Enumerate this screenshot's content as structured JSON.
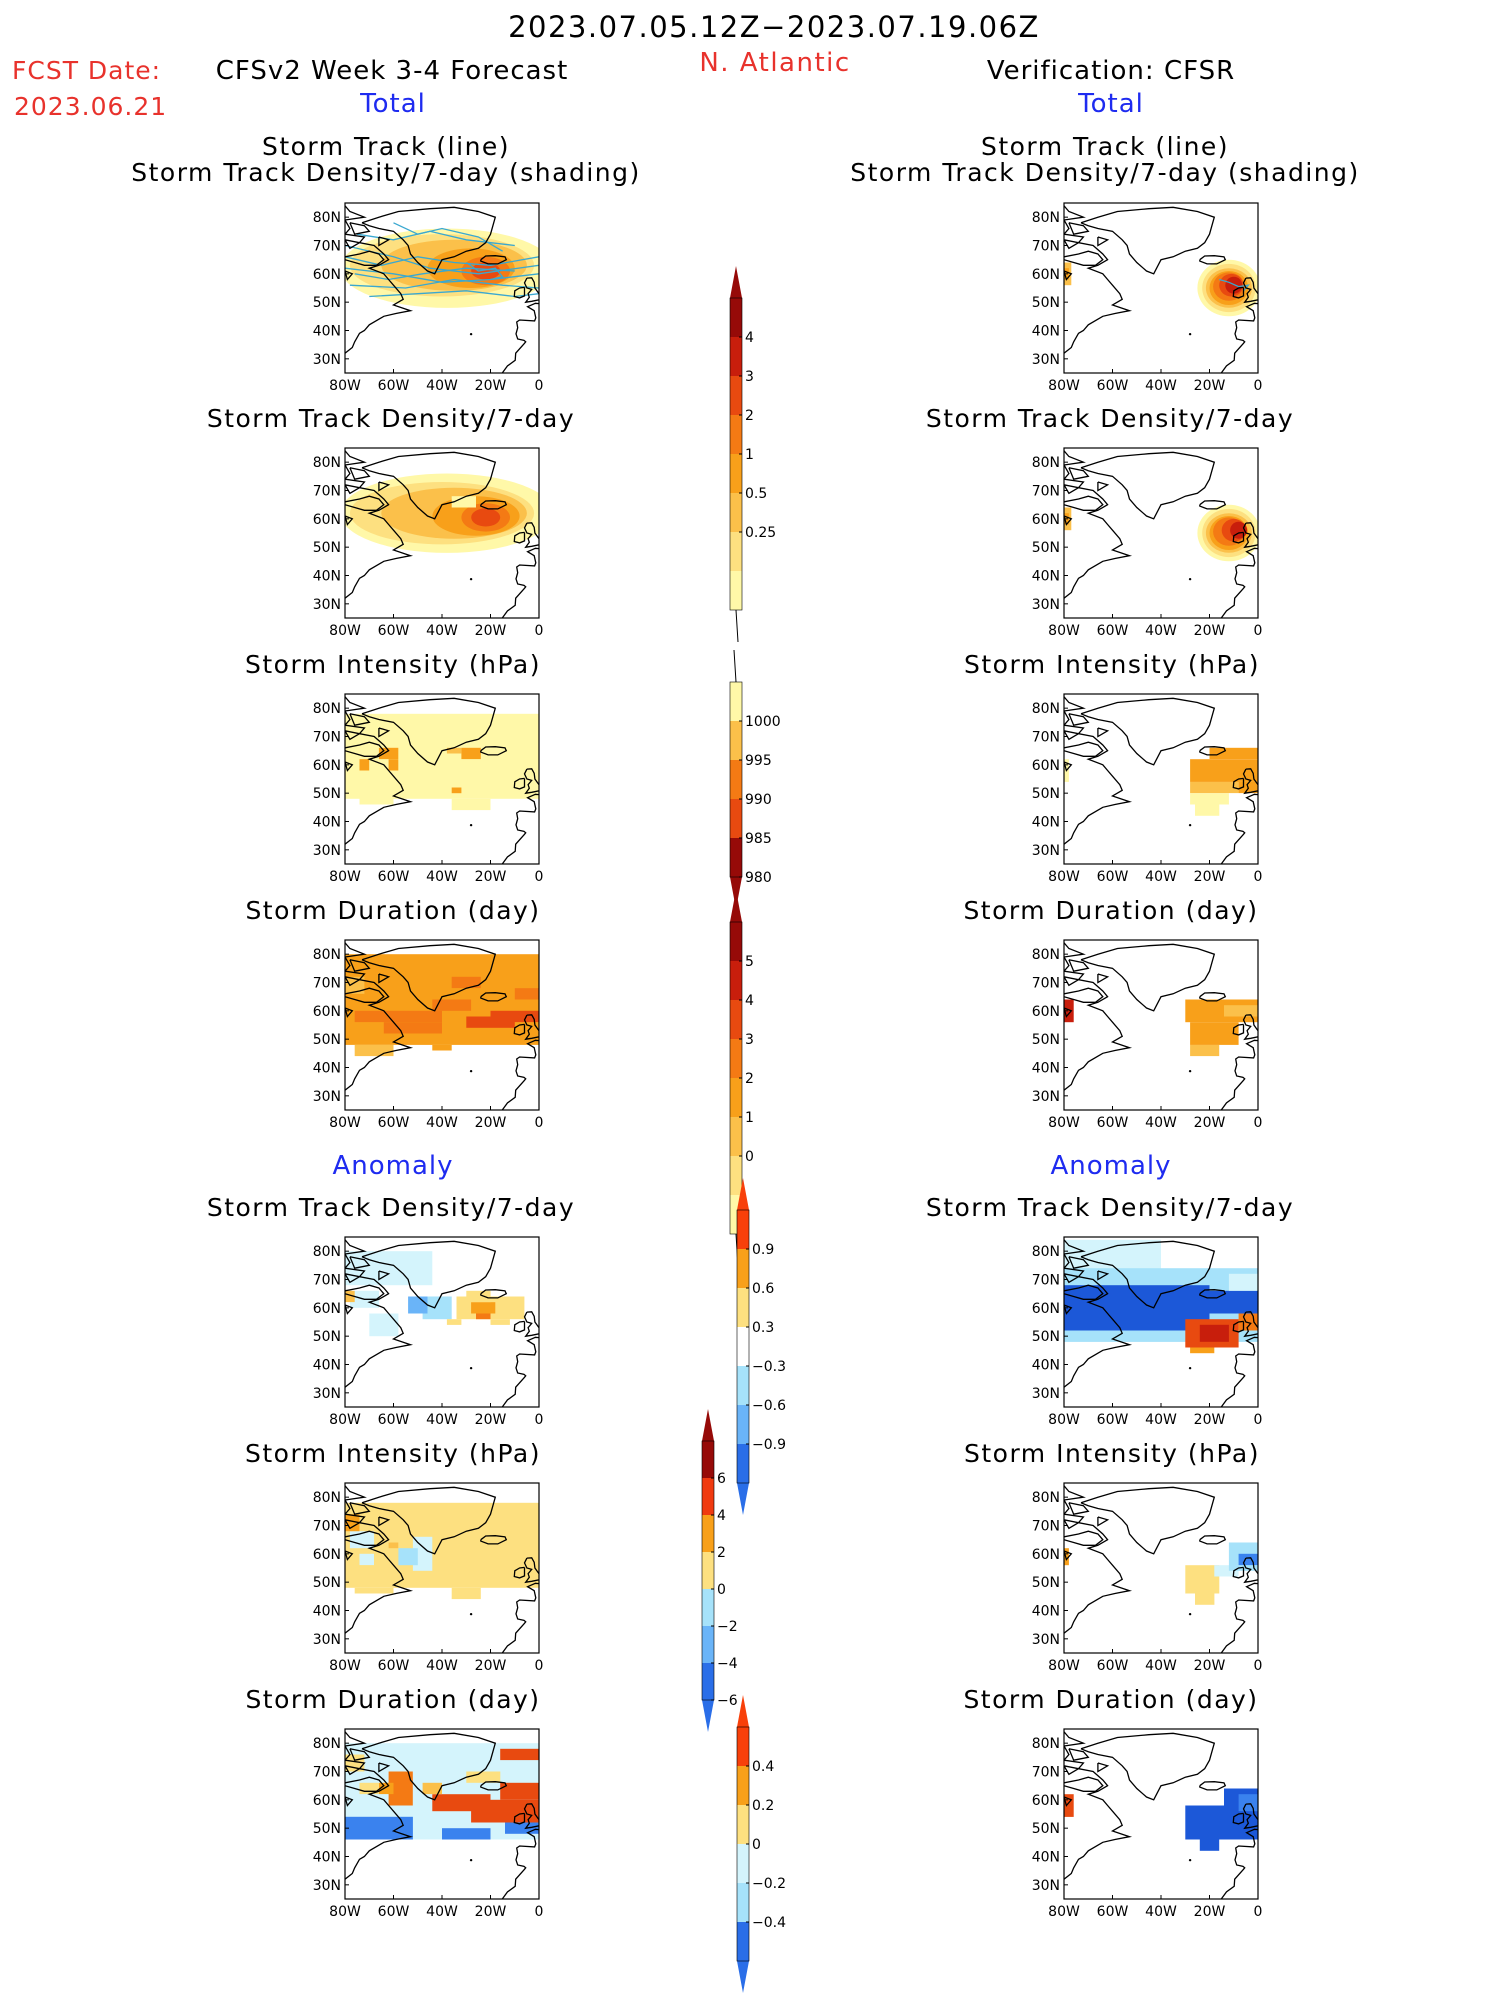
{
  "header": {
    "date_range": "2023.07.05.12Z−2023.07.19.06Z",
    "region": "N. Atlantic",
    "fcst_label": "FCST Date:",
    "fcst_date": "2023.06.21",
    "model_title": "CFSv2 Week 3-4 Forecast",
    "verification_title": "Verification: CFSR"
  },
  "sections": {
    "total_left": "Total",
    "total_right": "Total",
    "anomaly_left": "Anomaly",
    "anomaly_right": "Anomaly"
  },
  "panel_titles": {
    "track_line": "Storm Track (line)",
    "track_shading": "Storm Track Density/7-day (shading)",
    "density": "Storm Track Density/7-day",
    "intensity": "Storm Intensity (hPa)",
    "duration": "Storm Duration (day)"
  },
  "axes": {
    "lat_labels": [
      "80N",
      "70N",
      "60N",
      "50N",
      "40N",
      "30N"
    ],
    "lon_labels": [
      "80W",
      "60W",
      "40W",
      "20W",
      "0"
    ]
  },
  "colorbars": {
    "density_total": [
      "4",
      "3",
      "2",
      "1",
      "0.5",
      "0.25"
    ],
    "intensity_total": [
      "1000",
      "995",
      "990",
      "985",
      "980"
    ],
    "duration_total": [
      "5",
      "4",
      "3",
      "2",
      "1",
      "0"
    ],
    "density_anom": [
      "0.9",
      "0.6",
      "0.3",
      "−0.3",
      "−0.6",
      "−0.9"
    ],
    "intensity_anom": [
      "6",
      "4",
      "2",
      "0",
      "−2",
      "−4",
      "−6"
    ],
    "duration_anom": [
      "0.4",
      "0.2",
      "0",
      "−0.2",
      "−0.4"
    ]
  },
  "colors": {
    "warm": [
      "#fff8a8",
      "#fde080",
      "#fbc04a",
      "#f8a01a",
      "#f47a14",
      "#e84a10",
      "#c81e0c",
      "#960a08"
    ],
    "cool": [
      "#d4f4fc",
      "#a6e2fa",
      "#6ab4f8",
      "#3a82ee",
      "#1c58d8",
      "#0c3ca8"
    ],
    "tracks": "#3aa8d0",
    "title_red": "#e8322c",
    "section_blue": "#1e2bf0"
  }
}
